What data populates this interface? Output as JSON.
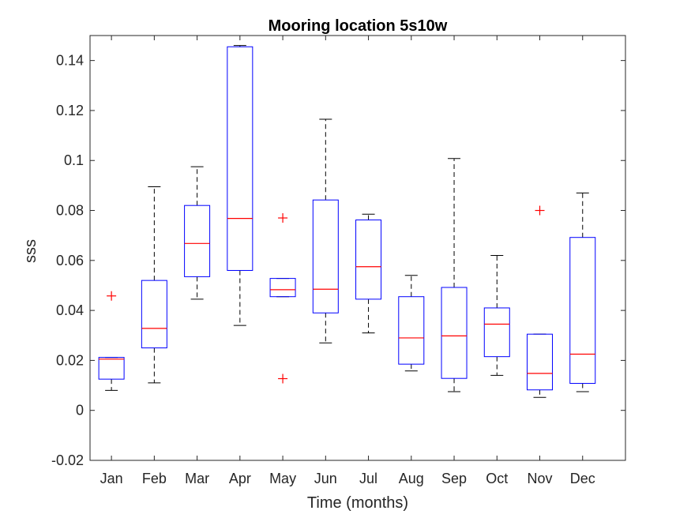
{
  "chart_data": {
    "type": "box",
    "title": "Mooring location 5s10w",
    "xlabel": "Time (months)",
    "ylabel": "sss",
    "ylim": [
      -0.02,
      0.15
    ],
    "yticks": [
      "-0.02",
      "0",
      "0.02",
      "0.04",
      "0.06",
      "0.08",
      "0.1",
      "0.12",
      "0.14"
    ],
    "categories": [
      "Jan",
      "Feb",
      "Mar",
      "Apr",
      "May",
      "Jun",
      "Jul",
      "Aug",
      "Sep",
      "Oct",
      "Nov",
      "Dec"
    ],
    "boxes": [
      {
        "min": 0.008,
        "q1": 0.0125,
        "median": 0.0205,
        "q3": 0.0212,
        "max": 0.0212,
        "outliers": [
          0.0458
        ]
      },
      {
        "min": 0.011,
        "q1": 0.025,
        "median": 0.0328,
        "q3": 0.052,
        "max": 0.0895,
        "outliers": []
      },
      {
        "min": 0.0445,
        "q1": 0.0535,
        "median": 0.0668,
        "q3": 0.082,
        "max": 0.0975,
        "outliers": []
      },
      {
        "min": 0.034,
        "q1": 0.056,
        "median": 0.0768,
        "q3": 0.1455,
        "max": 0.146,
        "outliers": []
      },
      {
        "min": 0.0455,
        "q1": 0.0455,
        "median": 0.0483,
        "q3": 0.0528,
        "max": 0.0528,
        "outliers": [
          0.077,
          0.0127
        ]
      },
      {
        "min": 0.027,
        "q1": 0.039,
        "median": 0.0485,
        "q3": 0.0842,
        "max": 0.1165,
        "outliers": []
      },
      {
        "min": 0.031,
        "q1": 0.0445,
        "median": 0.0575,
        "q3": 0.0762,
        "max": 0.0785,
        "outliers": []
      },
      {
        "min": 0.0158,
        "q1": 0.0185,
        "median": 0.029,
        "q3": 0.0455,
        "max": 0.054,
        "outliers": []
      },
      {
        "min": 0.0075,
        "q1": 0.0128,
        "median": 0.0298,
        "q3": 0.0492,
        "max": 0.1008,
        "outliers": []
      },
      {
        "min": 0.014,
        "q1": 0.0215,
        "median": 0.0345,
        "q3": 0.041,
        "max": 0.062,
        "outliers": []
      },
      {
        "min": 0.0052,
        "q1": 0.0082,
        "median": 0.0148,
        "q3": 0.0305,
        "max": 0.0305,
        "outliers": [
          0.08
        ]
      },
      {
        "min": 0.0075,
        "q1": 0.0108,
        "median": 0.0225,
        "q3": 0.0692,
        "max": 0.087,
        "outliers": []
      }
    ],
    "colors": {
      "box": "#0000ff",
      "median": "#ff0000",
      "whisker": "#000000",
      "outlier": "#ff0000",
      "axis": "#262626"
    },
    "grid": false,
    "legend": "none"
  }
}
